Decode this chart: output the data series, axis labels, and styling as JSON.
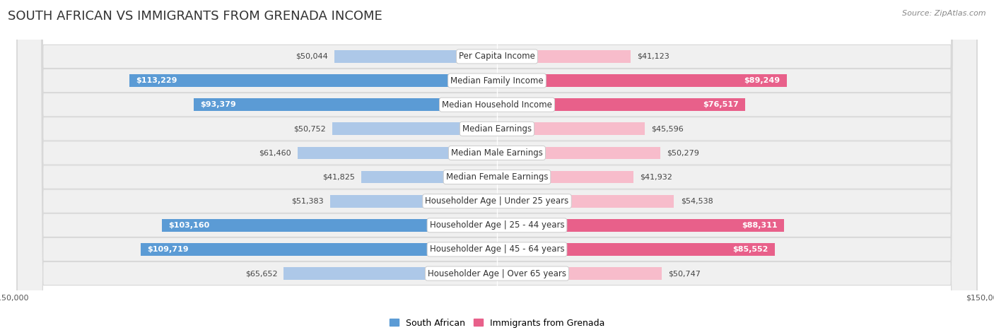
{
  "title": "SOUTH AFRICAN VS IMMIGRANTS FROM GRENADA INCOME",
  "source": "Source: ZipAtlas.com",
  "categories": [
    "Per Capita Income",
    "Median Family Income",
    "Median Household Income",
    "Median Earnings",
    "Median Male Earnings",
    "Median Female Earnings",
    "Householder Age | Under 25 years",
    "Householder Age | 25 - 44 years",
    "Householder Age | 45 - 64 years",
    "Householder Age | Over 65 years"
  ],
  "south_african": [
    50044,
    113229,
    93379,
    50752,
    61460,
    41825,
    51383,
    103160,
    109719,
    65652
  ],
  "grenada": [
    41123,
    89249,
    76517,
    45596,
    50279,
    41932,
    54538,
    88311,
    85552,
    50747
  ],
  "xlim": 150000,
  "blue_light": "#adc8e8",
  "blue_dark": "#5b9bd5",
  "pink_light": "#f7bccb",
  "pink_dark": "#e8608a",
  "blue_threshold": 70000,
  "pink_threshold": 70000,
  "bar_height": 0.52,
  "row_bg": "#f0f0f0",
  "row_border": "#d8d8d8",
  "background_color": "#ffffff",
  "title_fontsize": 13,
  "cat_fontsize": 8.5,
  "value_fontsize": 8,
  "legend_fontsize": 9,
  "source_fontsize": 8
}
